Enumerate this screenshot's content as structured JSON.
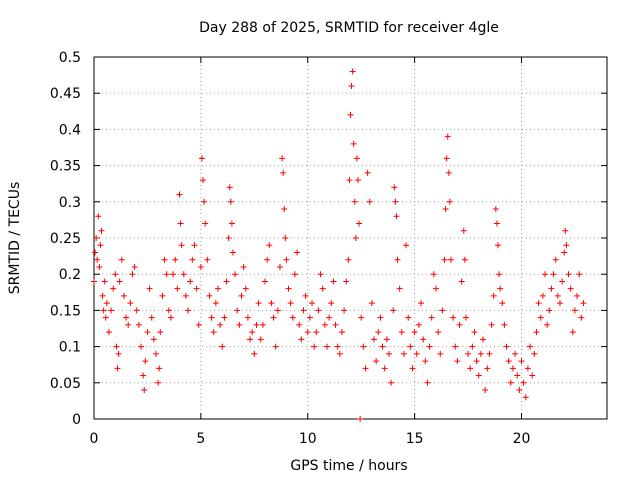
{
  "chart_data": {
    "type": "scatter",
    "title": "Day 288 of 2025, SRMTID for receiver 4gle",
    "xlabel": "GPS time / hours",
    "ylabel": "SRMTID / TECUs",
    "xlim": [
      0,
      24
    ],
    "ylim": [
      0,
      0.5
    ],
    "xticks": [
      0,
      5,
      10,
      15,
      20
    ],
    "xtick_labels": [
      "0",
      "5",
      "10",
      "15",
      "20"
    ],
    "yticks": [
      0,
      0.05,
      0.1,
      0.15,
      0.2,
      0.25,
      0.3,
      0.35,
      0.4,
      0.45,
      0.5
    ],
    "ytick_labels": [
      "0",
      "0.05",
      "0.1",
      "0.15",
      "0.2",
      "0.25",
      "0.3",
      "0.35",
      "0.4",
      "0.45",
      "0.5"
    ],
    "grid": true,
    "marker": "+",
    "color": "#ff0000",
    "series": [
      {
        "name": "SRMTID",
        "points": [
          [
            0.0,
            0.19
          ],
          [
            0.05,
            0.23
          ],
          [
            0.1,
            0.25
          ],
          [
            0.15,
            0.22
          ],
          [
            0.2,
            0.28
          ],
          [
            0.25,
            0.21
          ],
          [
            0.3,
            0.24
          ],
          [
            0.35,
            0.26
          ],
          [
            0.4,
            0.17
          ],
          [
            0.45,
            0.15
          ],
          [
            0.5,
            0.19
          ],
          [
            0.55,
            0.14
          ],
          [
            0.6,
            0.16
          ],
          [
            0.7,
            0.12
          ],
          [
            0.8,
            0.15
          ],
          [
            0.9,
            0.18
          ],
          [
            1.0,
            0.2
          ],
          [
            1.05,
            0.1
          ],
          [
            1.1,
            0.07
          ],
          [
            1.15,
            0.09
          ],
          [
            1.2,
            0.19
          ],
          [
            1.3,
            0.22
          ],
          [
            1.4,
            0.17
          ],
          [
            1.5,
            0.14
          ],
          [
            1.6,
            0.13
          ],
          [
            1.7,
            0.16
          ],
          [
            1.8,
            0.2
          ],
          [
            1.9,
            0.21
          ],
          [
            2.0,
            0.15
          ],
          [
            2.1,
            0.13
          ],
          [
            2.2,
            0.1
          ],
          [
            2.3,
            0.06
          ],
          [
            2.35,
            0.04
          ],
          [
            2.4,
            0.08
          ],
          [
            2.5,
            0.12
          ],
          [
            2.6,
            0.18
          ],
          [
            2.7,
            0.14
          ],
          [
            2.8,
            0.11
          ],
          [
            2.9,
            0.09
          ],
          [
            3.0,
            0.05
          ],
          [
            3.05,
            0.07
          ],
          [
            3.1,
            0.12
          ],
          [
            3.2,
            0.17
          ],
          [
            3.3,
            0.22
          ],
          [
            3.4,
            0.2
          ],
          [
            3.5,
            0.15
          ],
          [
            3.6,
            0.14
          ],
          [
            3.7,
            0.2
          ],
          [
            3.8,
            0.22
          ],
          [
            3.9,
            0.18
          ],
          [
            4.0,
            0.31
          ],
          [
            4.05,
            0.27
          ],
          [
            4.1,
            0.24
          ],
          [
            4.2,
            0.2
          ],
          [
            4.3,
            0.17
          ],
          [
            4.4,
            0.15
          ],
          [
            4.5,
            0.19
          ],
          [
            4.6,
            0.22
          ],
          [
            4.7,
            0.24
          ],
          [
            4.8,
            0.18
          ],
          [
            4.9,
            0.13
          ],
          [
            5.0,
            0.21
          ],
          [
            5.05,
            0.36
          ],
          [
            5.1,
            0.33
          ],
          [
            5.15,
            0.3
          ],
          [
            5.2,
            0.27
          ],
          [
            5.3,
            0.22
          ],
          [
            5.4,
            0.17
          ],
          [
            5.5,
            0.14
          ],
          [
            5.6,
            0.12
          ],
          [
            5.7,
            0.16
          ],
          [
            5.8,
            0.18
          ],
          [
            5.9,
            0.13
          ],
          [
            6.0,
            0.1
          ],
          [
            6.1,
            0.14
          ],
          [
            6.2,
            0.19
          ],
          [
            6.3,
            0.25
          ],
          [
            6.35,
            0.32
          ],
          [
            6.4,
            0.3
          ],
          [
            6.45,
            0.27
          ],
          [
            6.5,
            0.23
          ],
          [
            6.6,
            0.2
          ],
          [
            6.7,
            0.15
          ],
          [
            6.8,
            0.13
          ],
          [
            6.9,
            0.17
          ],
          [
            7.0,
            0.21
          ],
          [
            7.1,
            0.18
          ],
          [
            7.2,
            0.14
          ],
          [
            7.3,
            0.11
          ],
          [
            7.4,
            0.12
          ],
          [
            7.5,
            0.09
          ],
          [
            7.6,
            0.13
          ],
          [
            7.7,
            0.16
          ],
          [
            7.8,
            0.11
          ],
          [
            7.9,
            0.13
          ],
          [
            8.0,
            0.19
          ],
          [
            8.1,
            0.22
          ],
          [
            8.2,
            0.24
          ],
          [
            8.3,
            0.16
          ],
          [
            8.4,
            0.14
          ],
          [
            8.5,
            0.1
          ],
          [
            8.6,
            0.15
          ],
          [
            8.7,
            0.21
          ],
          [
            8.8,
            0.36
          ],
          [
            8.85,
            0.34
          ],
          [
            8.9,
            0.29
          ],
          [
            8.95,
            0.25
          ],
          [
            9.0,
            0.22
          ],
          [
            9.1,
            0.18
          ],
          [
            9.2,
            0.16
          ],
          [
            9.3,
            0.14
          ],
          [
            9.4,
            0.2
          ],
          [
            9.5,
            0.23
          ],
          [
            9.6,
            0.13
          ],
          [
            9.7,
            0.11
          ],
          [
            9.8,
            0.15
          ],
          [
            9.9,
            0.17
          ],
          [
            10.0,
            0.12
          ],
          [
            10.1,
            0.14
          ],
          [
            10.2,
            0.16
          ],
          [
            10.3,
            0.1
          ],
          [
            10.4,
            0.12
          ],
          [
            10.5,
            0.15
          ],
          [
            10.6,
            0.2
          ],
          [
            10.7,
            0.18
          ],
          [
            10.8,
            0.13
          ],
          [
            10.9,
            0.1
          ],
          [
            11.0,
            0.14
          ],
          [
            11.1,
            0.16
          ],
          [
            11.2,
            0.19
          ],
          [
            11.3,
            0.13
          ],
          [
            11.4,
            0.1
          ],
          [
            11.5,
            0.09
          ],
          [
            11.6,
            0.12
          ],
          [
            11.7,
            0.15
          ],
          [
            11.8,
            0.19
          ],
          [
            11.9,
            0.22
          ],
          [
            11.95,
            0.33
          ],
          [
            12.0,
            0.42
          ],
          [
            12.05,
            0.46
          ],
          [
            12.1,
            0.48
          ],
          [
            12.15,
            0.38
          ],
          [
            12.2,
            0.3
          ],
          [
            12.25,
            0.25
          ],
          [
            12.3,
            0.36
          ],
          [
            12.35,
            0.33
          ],
          [
            12.4,
            0.27
          ],
          [
            12.45,
            0.0
          ],
          [
            12.5,
            0.14
          ],
          [
            12.6,
            0.1
          ],
          [
            12.7,
            0.07
          ],
          [
            12.8,
            0.34
          ],
          [
            12.9,
            0.3
          ],
          [
            13.0,
            0.16
          ],
          [
            13.1,
            0.11
          ],
          [
            13.2,
            0.08
          ],
          [
            13.3,
            0.12
          ],
          [
            13.4,
            0.14
          ],
          [
            13.5,
            0.1
          ],
          [
            13.6,
            0.07
          ],
          [
            13.7,
            0.11
          ],
          [
            13.8,
            0.09
          ],
          [
            13.9,
            0.05
          ],
          [
            14.0,
            0.15
          ],
          [
            14.05,
            0.32
          ],
          [
            14.1,
            0.3
          ],
          [
            14.15,
            0.28
          ],
          [
            14.2,
            0.22
          ],
          [
            14.3,
            0.18
          ],
          [
            14.4,
            0.12
          ],
          [
            14.5,
            0.09
          ],
          [
            14.6,
            0.24
          ],
          [
            14.7,
            0.14
          ],
          [
            14.8,
            0.1
          ],
          [
            14.9,
            0.07
          ],
          [
            15.0,
            0.12
          ],
          [
            15.1,
            0.09
          ],
          [
            15.2,
            0.13
          ],
          [
            15.3,
            0.16
          ],
          [
            15.4,
            0.11
          ],
          [
            15.5,
            0.08
          ],
          [
            15.6,
            0.05
          ],
          [
            15.7,
            0.1
          ],
          [
            15.8,
            0.14
          ],
          [
            15.9,
            0.2
          ],
          [
            16.0,
            0.18
          ],
          [
            16.1,
            0.12
          ],
          [
            16.2,
            0.09
          ],
          [
            16.3,
            0.15
          ],
          [
            16.4,
            0.22
          ],
          [
            16.45,
            0.29
          ],
          [
            16.5,
            0.36
          ],
          [
            16.55,
            0.39
          ],
          [
            16.6,
            0.34
          ],
          [
            16.65,
            0.3
          ],
          [
            16.7,
            0.22
          ],
          [
            16.8,
            0.14
          ],
          [
            16.9,
            0.1
          ],
          [
            17.0,
            0.08
          ],
          [
            17.1,
            0.13
          ],
          [
            17.2,
            0.19
          ],
          [
            17.3,
            0.26
          ],
          [
            17.35,
            0.22
          ],
          [
            17.4,
            0.14
          ],
          [
            17.5,
            0.09
          ],
          [
            17.6,
            0.07
          ],
          [
            17.7,
            0.1
          ],
          [
            17.8,
            0.12
          ],
          [
            17.9,
            0.08
          ],
          [
            18.0,
            0.06
          ],
          [
            18.1,
            0.09
          ],
          [
            18.2,
            0.11
          ],
          [
            18.3,
            0.04
          ],
          [
            18.4,
            0.07
          ],
          [
            18.5,
            0.09
          ],
          [
            18.6,
            0.13
          ],
          [
            18.7,
            0.17
          ],
          [
            18.8,
            0.29
          ],
          [
            18.85,
            0.27
          ],
          [
            18.9,
            0.24
          ],
          [
            18.95,
            0.2
          ],
          [
            19.0,
            0.18
          ],
          [
            19.1,
            0.16
          ],
          [
            19.2,
            0.13
          ],
          [
            19.3,
            0.1
          ],
          [
            19.4,
            0.08
          ],
          [
            19.5,
            0.05
          ],
          [
            19.6,
            0.07
          ],
          [
            19.7,
            0.09
          ],
          [
            19.8,
            0.06
          ],
          [
            19.9,
            0.04
          ],
          [
            20.0,
            0.08
          ],
          [
            20.1,
            0.05
          ],
          [
            20.2,
            0.03
          ],
          [
            20.3,
            0.07
          ],
          [
            20.4,
            0.1
          ],
          [
            20.5,
            0.06
          ],
          [
            20.6,
            0.09
          ],
          [
            20.7,
            0.12
          ],
          [
            20.8,
            0.16
          ],
          [
            20.9,
            0.14
          ],
          [
            21.0,
            0.17
          ],
          [
            21.1,
            0.2
          ],
          [
            21.2,
            0.13
          ],
          [
            21.3,
            0.15
          ],
          [
            21.4,
            0.18
          ],
          [
            21.5,
            0.2
          ],
          [
            21.6,
            0.22
          ],
          [
            21.7,
            0.17
          ],
          [
            21.8,
            0.16
          ],
          [
            21.9,
            0.19
          ],
          [
            22.0,
            0.23
          ],
          [
            22.05,
            0.26
          ],
          [
            22.1,
            0.24
          ],
          [
            22.2,
            0.2
          ],
          [
            22.3,
            0.18
          ],
          [
            22.4,
            0.12
          ],
          [
            22.5,
            0.15
          ],
          [
            22.6,
            0.17
          ],
          [
            22.7,
            0.2
          ],
          [
            22.8,
            0.14
          ],
          [
            22.9,
            0.16
          ]
        ]
      }
    ]
  }
}
